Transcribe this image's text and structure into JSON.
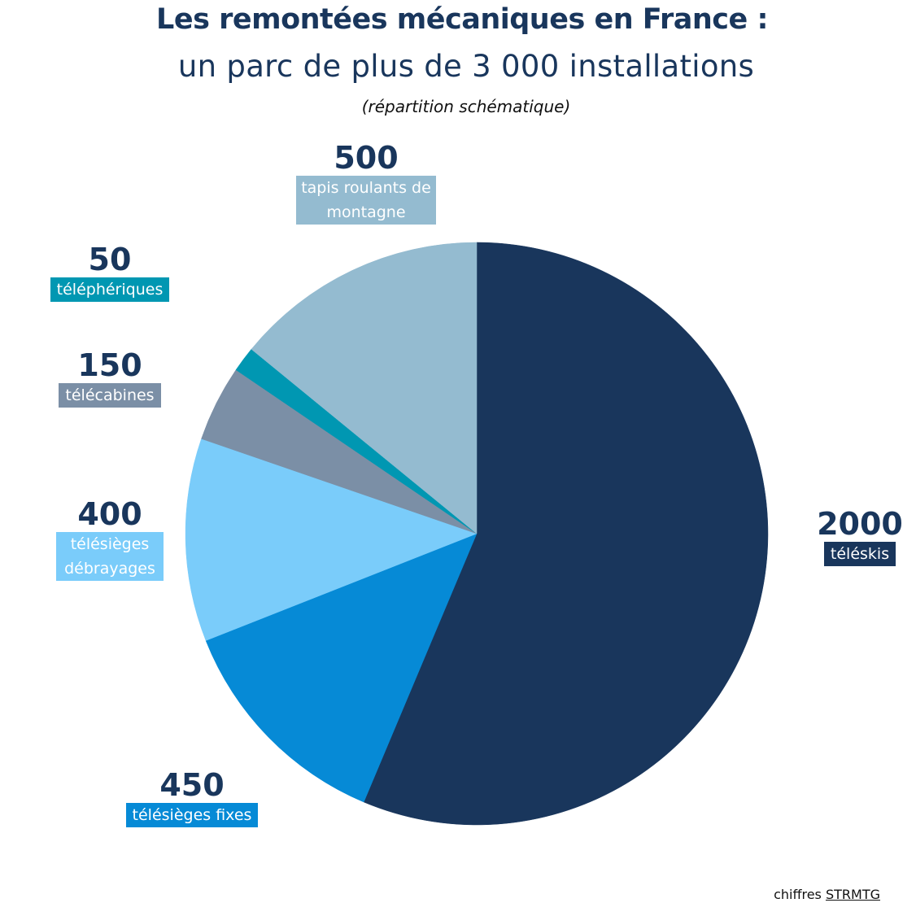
{
  "title": "Les remontées mécaniques en France :",
  "subtitle": "un parc de plus de 3 000 installations",
  "note": "(répartition schématique)",
  "source": {
    "prefix": "chiffres",
    "link": "STRMTG"
  },
  "chart_data": {
    "type": "pie",
    "title": "Les remontées mécaniques en France : un parc de plus de 3 000 installations",
    "start": "12 o'clock",
    "direction": "clockwise",
    "slices": [
      {
        "key": "teleskis",
        "value": 2000,
        "value_label": "2000",
        "label": "téléskis",
        "color": "#19365C"
      },
      {
        "key": "fixes",
        "value": 450,
        "value_label": "450",
        "label": "télésièges fixes",
        "color": "#068AD6"
      },
      {
        "key": "debrayages",
        "value": 400,
        "value_label": "400",
        "label": "télésièges débrayages",
        "label_lines": [
          "télésièges",
          "débrayages"
        ],
        "color": "#7ACCFA"
      },
      {
        "key": "telecabines",
        "value": 150,
        "value_label": "150",
        "label": "télécabines",
        "color": "#7B8FA6"
      },
      {
        "key": "telepheriques",
        "value": 50,
        "value_label": "50",
        "label": "téléphériques",
        "color": "#0097B2"
      },
      {
        "key": "tapis",
        "value": 500,
        "value_label": "500",
        "label": "tapis roulants de montagne",
        "label_lines": [
          "tapis roulants de",
          "montagne"
        ],
        "color": "#94BBD0"
      }
    ]
  }
}
